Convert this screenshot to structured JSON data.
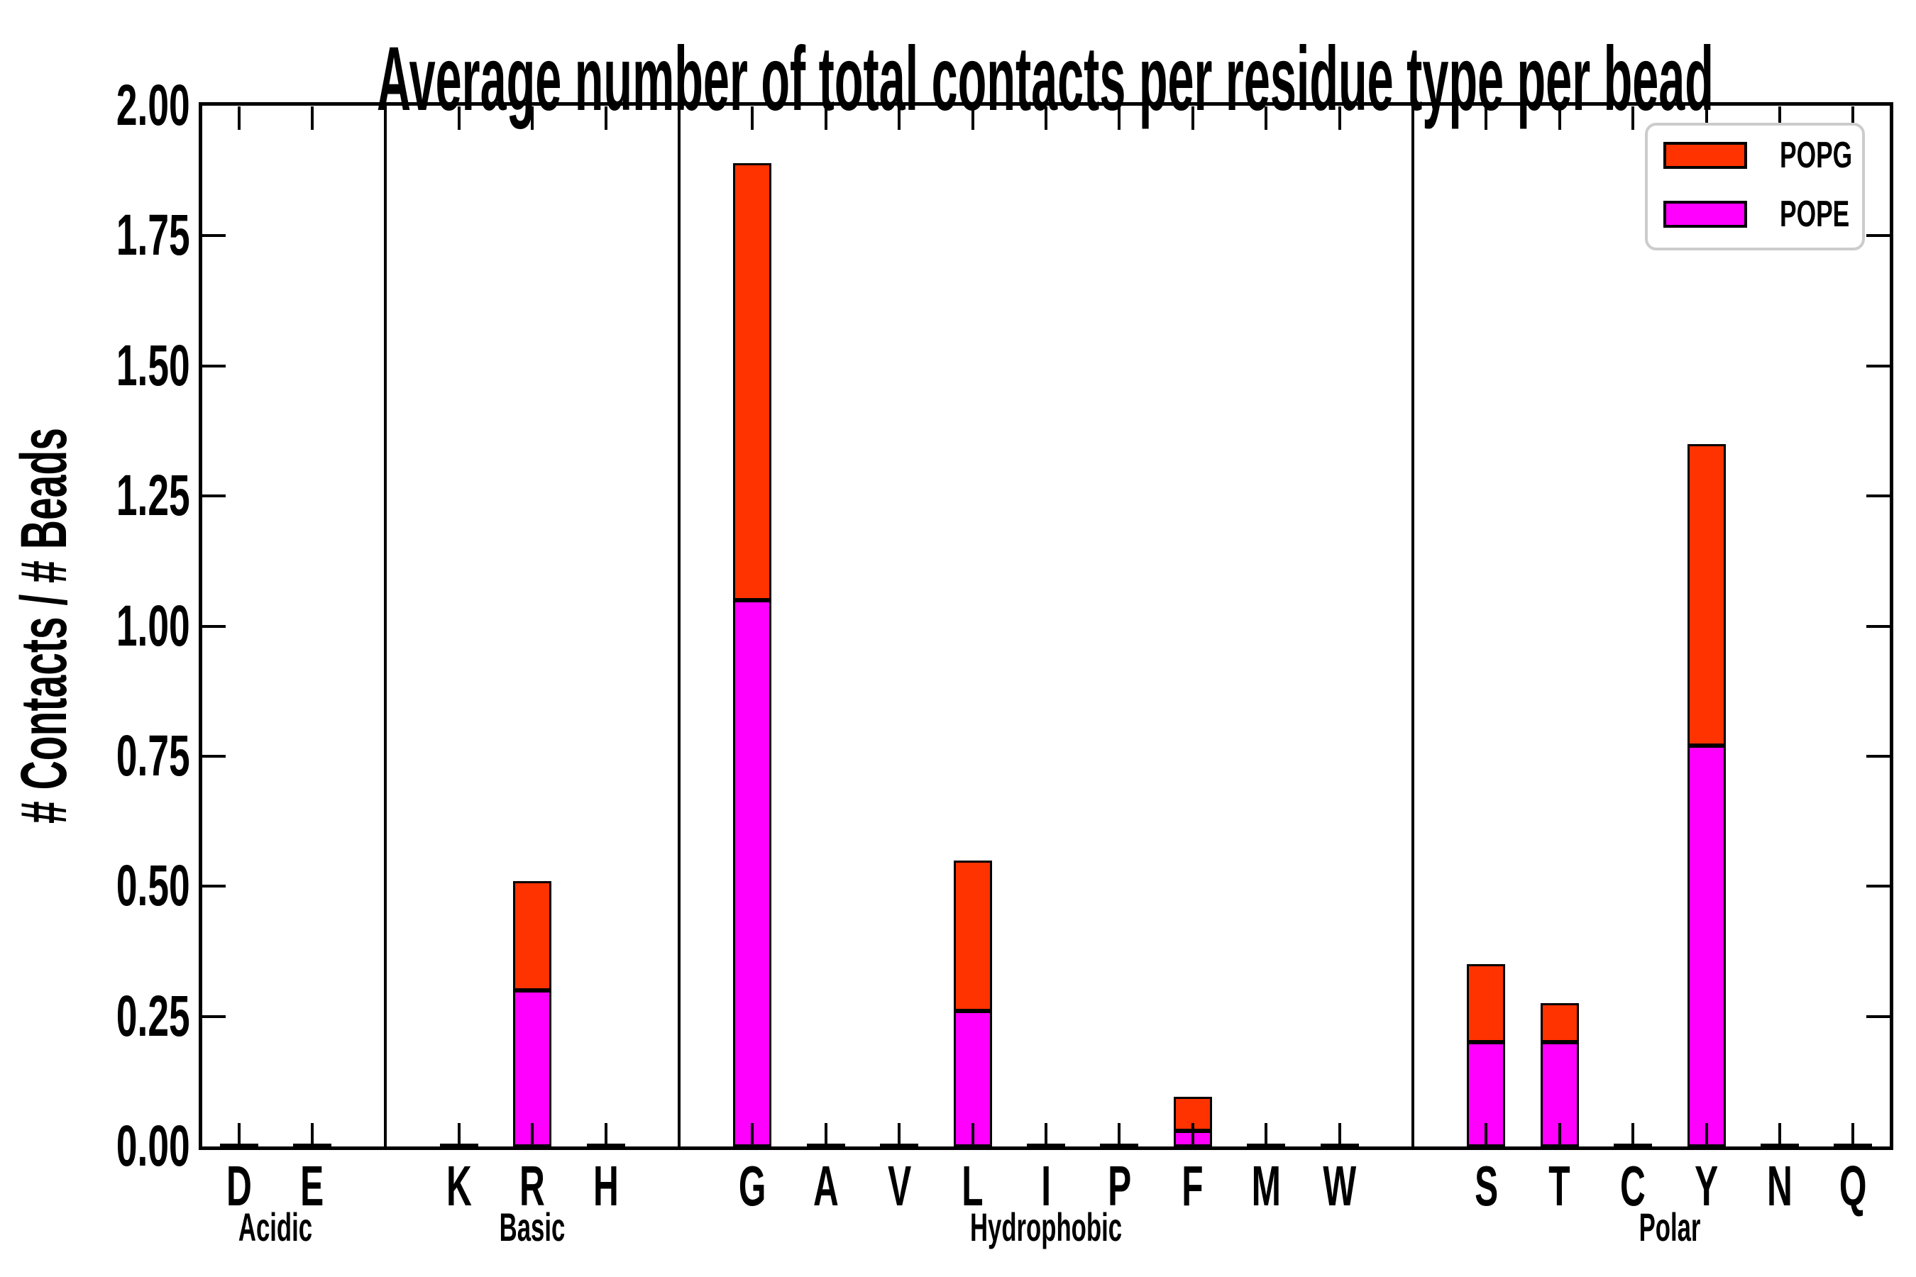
{
  "chart_data": {
    "type": "bar",
    "stacked": true,
    "title": "Average number of total contacts per residue type per bead",
    "ylabel": "# Contacts / # Beads",
    "xlabel": "",
    "ylim": [
      0.0,
      2.0
    ],
    "ytick_step": 0.25,
    "ytick_labels": [
      "0.00",
      "0.25",
      "0.50",
      "0.75",
      "1.00",
      "1.25",
      "1.50",
      "1.75",
      "2.00"
    ],
    "grid": false,
    "legend_position": "upper right",
    "stack_order_bottom_to_top": [
      "POPE",
      "POPG"
    ],
    "groups": [
      {
        "label": "Acidic",
        "residues": [
          "D",
          "E"
        ]
      },
      {
        "label": "Basic",
        "residues": [
          "K",
          "R",
          "H"
        ]
      },
      {
        "label": "Hydrophobic",
        "residues": [
          "G",
          "A",
          "V",
          "L",
          "I",
          "P",
          "F",
          "M",
          "W"
        ]
      },
      {
        "label": "Polar",
        "residues": [
          "S",
          "T",
          "C",
          "Y",
          "N",
          "Q"
        ]
      }
    ],
    "series": [
      {
        "name": "POPG",
        "color": "#ff3300",
        "values": {
          "D": 0,
          "E": 0,
          "K": 0,
          "R": 0.21,
          "H": 0,
          "G": 0.84,
          "A": 0,
          "V": 0,
          "L": 0.29,
          "I": 0,
          "P": 0,
          "F": 0.065,
          "M": 0,
          "W": 0,
          "S": 0.15,
          "T": 0.075,
          "C": 0,
          "Y": 0.58,
          "N": 0,
          "Q": 0
        }
      },
      {
        "name": "POPE",
        "color": "#ff00ff",
        "values": {
          "D": 0,
          "E": 0,
          "K": 0,
          "R": 0.3,
          "H": 0,
          "G": 1.05,
          "A": 0,
          "V": 0,
          "L": 0.26,
          "I": 0,
          "P": 0,
          "F": 0.03,
          "M": 0,
          "W": 0,
          "S": 0.2,
          "T": 0.2,
          "C": 0,
          "Y": 0.77,
          "N": 0,
          "Q": 0
        }
      }
    ],
    "bar_edge_color": "#000000",
    "background_color": "#ffffff"
  },
  "legend": {
    "entries": [
      {
        "label": "POPG",
        "color": "#ff3300"
      },
      {
        "label": "POPE",
        "color": "#ff00ff"
      }
    ]
  }
}
